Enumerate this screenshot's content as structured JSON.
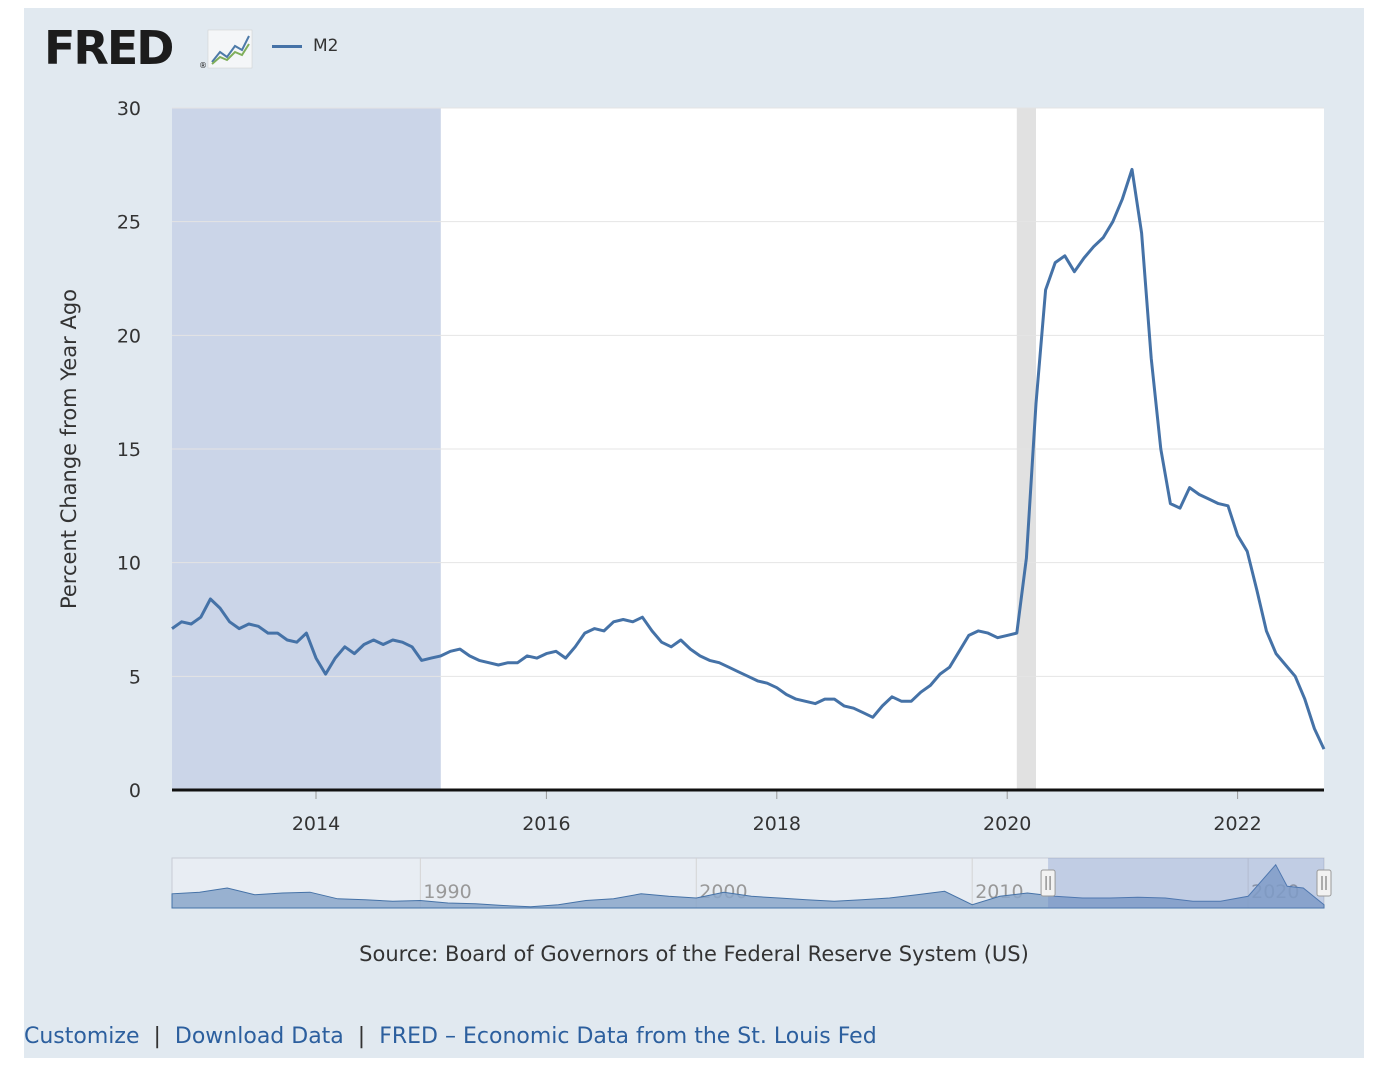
{
  "brand": {
    "name": "FRED",
    "registered": "®"
  },
  "chart_data": {
    "type": "line",
    "series": [
      {
        "name": "M2",
        "color": "#4572a7",
        "points": [
          [
            "2012-10-01",
            7.1
          ],
          [
            "2012-11-01",
            7.4
          ],
          [
            "2012-12-01",
            7.3
          ],
          [
            "2013-01-01",
            7.6
          ],
          [
            "2013-02-01",
            8.4
          ],
          [
            "2013-03-01",
            8.0
          ],
          [
            "2013-04-01",
            7.4
          ],
          [
            "2013-05-01",
            7.1
          ],
          [
            "2013-06-01",
            7.3
          ],
          [
            "2013-07-01",
            7.2
          ],
          [
            "2013-08-01",
            6.9
          ],
          [
            "2013-09-01",
            6.9
          ],
          [
            "2013-10-01",
            6.6
          ],
          [
            "2013-11-01",
            6.5
          ],
          [
            "2013-12-01",
            6.9
          ],
          [
            "2014-01-01",
            5.8
          ],
          [
            "2014-02-01",
            5.1
          ],
          [
            "2014-03-01",
            5.8
          ],
          [
            "2014-04-01",
            6.3
          ],
          [
            "2014-05-01",
            6.0
          ],
          [
            "2014-06-01",
            6.4
          ],
          [
            "2014-07-01",
            6.6
          ],
          [
            "2014-08-01",
            6.4
          ],
          [
            "2014-09-01",
            6.6
          ],
          [
            "2014-10-01",
            6.5
          ],
          [
            "2014-11-01",
            6.3
          ],
          [
            "2014-12-01",
            5.7
          ],
          [
            "2015-01-01",
            5.8
          ],
          [
            "2015-02-01",
            5.9
          ],
          [
            "2015-03-01",
            6.1
          ],
          [
            "2015-04-01",
            6.2
          ],
          [
            "2015-05-01",
            5.9
          ],
          [
            "2015-06-01",
            5.7
          ],
          [
            "2015-07-01",
            5.6
          ],
          [
            "2015-08-01",
            5.5
          ],
          [
            "2015-09-01",
            5.6
          ],
          [
            "2015-10-01",
            5.6
          ],
          [
            "2015-11-01",
            5.9
          ],
          [
            "2015-12-01",
            5.8
          ],
          [
            "2016-01-01",
            6.0
          ],
          [
            "2016-02-01",
            6.1
          ],
          [
            "2016-03-01",
            5.8
          ],
          [
            "2016-04-01",
            6.3
          ],
          [
            "2016-05-01",
            6.9
          ],
          [
            "2016-06-01",
            7.1
          ],
          [
            "2016-07-01",
            7.0
          ],
          [
            "2016-08-01",
            7.4
          ],
          [
            "2016-09-01",
            7.5
          ],
          [
            "2016-10-01",
            7.4
          ],
          [
            "2016-11-01",
            7.6
          ],
          [
            "2016-12-01",
            7.0
          ],
          [
            "2017-01-01",
            6.5
          ],
          [
            "2017-02-01",
            6.3
          ],
          [
            "2017-03-01",
            6.6
          ],
          [
            "2017-04-01",
            6.2
          ],
          [
            "2017-05-01",
            5.9
          ],
          [
            "2017-06-01",
            5.7
          ],
          [
            "2017-07-01",
            5.6
          ],
          [
            "2017-08-01",
            5.4
          ],
          [
            "2017-09-01",
            5.2
          ],
          [
            "2017-10-01",
            5.0
          ],
          [
            "2017-11-01",
            4.8
          ],
          [
            "2017-12-01",
            4.7
          ],
          [
            "2018-01-01",
            4.5
          ],
          [
            "2018-02-01",
            4.2
          ],
          [
            "2018-03-01",
            4.0
          ],
          [
            "2018-04-01",
            3.9
          ],
          [
            "2018-05-01",
            3.8
          ],
          [
            "2018-06-01",
            4.0
          ],
          [
            "2018-07-01",
            4.0
          ],
          [
            "2018-08-01",
            3.7
          ],
          [
            "2018-09-01",
            3.6
          ],
          [
            "2018-10-01",
            3.4
          ],
          [
            "2018-11-01",
            3.2
          ],
          [
            "2018-12-01",
            3.7
          ],
          [
            "2019-01-01",
            4.1
          ],
          [
            "2019-02-01",
            3.9
          ],
          [
            "2019-03-01",
            3.9
          ],
          [
            "2019-04-01",
            4.3
          ],
          [
            "2019-05-01",
            4.6
          ],
          [
            "2019-06-01",
            5.1
          ],
          [
            "2019-07-01",
            5.4
          ],
          [
            "2019-08-01",
            6.1
          ],
          [
            "2019-09-01",
            6.8
          ],
          [
            "2019-10-01",
            7.0
          ],
          [
            "2019-11-01",
            6.9
          ],
          [
            "2019-12-01",
            6.7
          ],
          [
            "2020-01-01",
            6.8
          ],
          [
            "2020-02-01",
            6.9
          ],
          [
            "2020-03-01",
            10.2
          ],
          [
            "2020-04-01",
            17.0
          ],
          [
            "2020-05-01",
            22.0
          ],
          [
            "2020-06-01",
            23.2
          ],
          [
            "2020-07-01",
            23.5
          ],
          [
            "2020-08-01",
            22.8
          ],
          [
            "2020-09-01",
            23.4
          ],
          [
            "2020-10-01",
            23.9
          ],
          [
            "2020-11-01",
            24.3
          ],
          [
            "2020-12-01",
            25.0
          ],
          [
            "2021-01-01",
            26.0
          ],
          [
            "2021-02-01",
            27.3
          ],
          [
            "2021-03-01",
            24.5
          ],
          [
            "2021-04-01",
            19.0
          ],
          [
            "2021-05-01",
            15.0
          ],
          [
            "2021-06-01",
            12.6
          ],
          [
            "2021-07-01",
            12.4
          ],
          [
            "2021-08-01",
            13.3
          ],
          [
            "2021-09-01",
            13.0
          ],
          [
            "2021-10-01",
            12.8
          ],
          [
            "2021-11-01",
            12.6
          ],
          [
            "2021-12-01",
            12.5
          ],
          [
            "2022-01-01",
            11.2
          ],
          [
            "2022-02-01",
            10.5
          ],
          [
            "2022-03-01",
            8.8
          ],
          [
            "2022-04-01",
            7.0
          ],
          [
            "2022-05-01",
            6.0
          ],
          [
            "2022-06-01",
            5.5
          ],
          [
            "2022-07-01",
            5.0
          ],
          [
            "2022-08-01",
            4.0
          ],
          [
            "2022-09-01",
            2.7
          ],
          [
            "2022-10-01",
            1.8
          ]
        ]
      }
    ],
    "ylabel": "Percent Change from Year Ago",
    "xlim": [
      "2012-10-01",
      "2022-10-01"
    ],
    "ylim": [
      0,
      30
    ],
    "y_ticks": [
      0,
      5,
      10,
      15,
      20,
      25,
      30
    ],
    "x_ticks": [
      "2014",
      "2016",
      "2018",
      "2020",
      "2022"
    ],
    "recessions": [
      [
        "2020-02-01",
        "2020-04-01"
      ]
    ],
    "highlight": [
      "2012-10-01",
      "2015-02-01"
    ],
    "legend_position": "top-left",
    "grid": true,
    "navigator": {
      "labels": [
        "1990",
        "2000",
        "2010",
        "2020"
      ],
      "range": [
        "1981-01-01",
        "2022-10-01"
      ],
      "selected": [
        "2012-10-01",
        "2022-10-01"
      ],
      "profile": [
        [
          "1981-01-01",
          8.5
        ],
        [
          "1982-01-01",
          9.5
        ],
        [
          "1983-01-01",
          12.0
        ],
        [
          "1984-01-01",
          8.0
        ],
        [
          "1985-01-01",
          9.0
        ],
        [
          "1986-01-01",
          9.5
        ],
        [
          "1987-01-01",
          5.5
        ],
        [
          "1988-01-01",
          5.0
        ],
        [
          "1989-01-01",
          4.0
        ],
        [
          "1990-01-01",
          4.5
        ],
        [
          "1991-01-01",
          3.0
        ],
        [
          "1992-01-01",
          2.5
        ],
        [
          "1993-01-01",
          1.5
        ],
        [
          "1994-01-01",
          0.8
        ],
        [
          "1995-01-01",
          2.0
        ],
        [
          "1996-01-01",
          4.5
        ],
        [
          "1997-01-01",
          5.5
        ],
        [
          "1998-01-01",
          8.5
        ],
        [
          "1999-01-01",
          7.0
        ],
        [
          "2000-01-01",
          6.0
        ],
        [
          "2001-01-01",
          9.5
        ],
        [
          "2002-01-01",
          7.0
        ],
        [
          "2003-01-01",
          6.0
        ],
        [
          "2004-01-01",
          5.0
        ],
        [
          "2005-01-01",
          4.0
        ],
        [
          "2006-01-01",
          5.0
        ],
        [
          "2007-01-01",
          6.0
        ],
        [
          "2008-01-01",
          8.0
        ],
        [
          "2009-01-01",
          10.0
        ],
        [
          "2010-01-01",
          2.0
        ],
        [
          "2011-01-01",
          7.0
        ],
        [
          "2012-01-01",
          9.0
        ],
        [
          "2013-01-01",
          7.0
        ],
        [
          "2014-01-01",
          6.0
        ],
        [
          "2015-01-01",
          6.0
        ],
        [
          "2016-01-01",
          6.5
        ],
        [
          "2017-01-01",
          6.0
        ],
        [
          "2018-01-01",
          4.0
        ],
        [
          "2019-01-01",
          4.0
        ],
        [
          "2020-01-01",
          7.0
        ],
        [
          "2021-01-01",
          26.0
        ],
        [
          "2021-06-01",
          13.0
        ],
        [
          "2022-01-01",
          12.0
        ],
        [
          "2022-10-01",
          2.0
        ]
      ]
    },
    "colors": {
      "line": "#4572a7",
      "highlight": "#cbd5e8",
      "recession": "#e1e1e1",
      "frame": "#e1e9f0"
    }
  },
  "source": "Source: Board of Governors of the Federal Reserve System (US)",
  "footer": {
    "links": [
      "Customize",
      "Download Data",
      "FRED – Economic Data from the St. Louis Fed"
    ],
    "separator": "|"
  }
}
